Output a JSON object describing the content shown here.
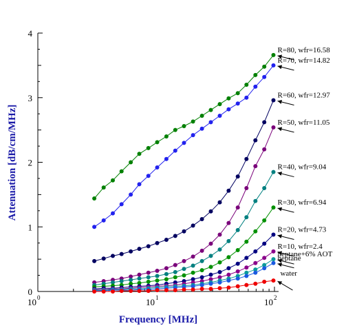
{
  "chart_data": {
    "type": "line",
    "xlabel": "Frequency [MHz]",
    "ylabel": "Attenuation [dB/cm/MHz]",
    "x_scale": "log",
    "xlim": [
      1,
      100
    ],
    "ylim": [
      0,
      4
    ],
    "x_ticks": [
      {
        "value": 1,
        "base": "10",
        "exp": "0"
      },
      {
        "value": 10,
        "base": "10",
        "exp": "1"
      },
      {
        "value": 100,
        "base": "10",
        "exp": "2"
      }
    ],
    "y_ticks": [
      "0",
      "1",
      "2",
      "3",
      "4"
    ],
    "grid": false,
    "x": [
      3,
      3.6,
      4.3,
      5.1,
      6.1,
      7.2,
      8.6,
      10.2,
      12.2,
      14.5,
      17.2,
      20.5,
      24.4,
      29,
      34.5,
      41,
      49,
      58,
      69,
      82,
      98
    ],
    "series": [
      {
        "name": "",
        "color": "#008000",
        "values": [
          1.44,
          1.61,
          1.72,
          1.86,
          2.0,
          2.13,
          2.22,
          2.31,
          2.4,
          2.5,
          2.56,
          2.63,
          2.72,
          2.81,
          2.9,
          2.99,
          3.07,
          3.2,
          3.35,
          3.48,
          3.66
        ]
      },
      {
        "name": "",
        "color": "#2222ee",
        "values": [
          1.0,
          1.1,
          1.21,
          1.35,
          1.5,
          1.66,
          1.79,
          1.92,
          2.05,
          2.18,
          2.3,
          2.42,
          2.52,
          2.62,
          2.72,
          2.82,
          2.91,
          3.0,
          3.17,
          3.32,
          3.5
        ]
      },
      {
        "name": "",
        "color": "#000060",
        "values": [
          0.47,
          0.51,
          0.55,
          0.58,
          0.62,
          0.66,
          0.7,
          0.75,
          0.8,
          0.86,
          0.93,
          1.02,
          1.12,
          1.24,
          1.38,
          1.56,
          1.78,
          2.05,
          2.34,
          2.62,
          2.96
        ]
      },
      {
        "name": "",
        "color": "#7a007a",
        "values": [
          0.14,
          0.16,
          0.18,
          0.2,
          0.23,
          0.26,
          0.29,
          0.32,
          0.36,
          0.41,
          0.47,
          0.54,
          0.63,
          0.74,
          0.88,
          1.06,
          1.3,
          1.6,
          1.94,
          2.2,
          2.54
        ]
      },
      {
        "name": "",
        "color": "#008080",
        "values": [
          0.1,
          0.12,
          0.14,
          0.16,
          0.18,
          0.2,
          0.22,
          0.24,
          0.27,
          0.3,
          0.35,
          0.4,
          0.47,
          0.55,
          0.65,
          0.78,
          0.95,
          1.15,
          1.4,
          1.6,
          1.85
        ]
      },
      {
        "name": "",
        "color": "#009000",
        "values": [
          0.07,
          0.08,
          0.09,
          0.1,
          0.12,
          0.13,
          0.15,
          0.17,
          0.19,
          0.22,
          0.25,
          0.29,
          0.33,
          0.38,
          0.45,
          0.53,
          0.64,
          0.77,
          0.93,
          1.1,
          1.3
        ]
      },
      {
        "name": "",
        "color": "#000080",
        "values": [
          0.04,
          0.05,
          0.05,
          0.06,
          0.07,
          0.08,
          0.09,
          0.1,
          0.12,
          0.14,
          0.16,
          0.19,
          0.22,
          0.26,
          0.3,
          0.36,
          0.43,
          0.52,
          0.62,
          0.74,
          0.88
        ]
      },
      {
        "name": "",
        "color": "#8a008a",
        "values": [
          0.03,
          0.03,
          0.04,
          0.04,
          0.05,
          0.06,
          0.07,
          0.08,
          0.09,
          0.1,
          0.12,
          0.14,
          0.16,
          0.19,
          0.22,
          0.26,
          0.31,
          0.37,
          0.44,
          0.52,
          0.62
        ]
      },
      {
        "name": "",
        "color": "#0a9a9a",
        "values": [
          0.02,
          0.02,
          0.03,
          0.03,
          0.04,
          0.04,
          0.05,
          0.06,
          0.07,
          0.08,
          0.09,
          0.1,
          0.12,
          0.14,
          0.17,
          0.2,
          0.24,
          0.29,
          0.34,
          0.41,
          0.5
        ]
      },
      {
        "name": "",
        "color": "#1a5ae0",
        "values": [
          0.01,
          0.01,
          0.02,
          0.02,
          0.02,
          0.03,
          0.03,
          0.04,
          0.05,
          0.06,
          0.07,
          0.08,
          0.1,
          0.12,
          0.14,
          0.17,
          0.2,
          0.24,
          0.29,
          0.36,
          0.44
        ]
      },
      {
        "name": "",
        "color": "#ee0000",
        "values": [
          0.0,
          0.0,
          0.0,
          0.01,
          0.01,
          0.01,
          0.01,
          0.02,
          0.02,
          0.02,
          0.03,
          0.03,
          0.04,
          0.04,
          0.05,
          0.06,
          0.08,
          0.1,
          0.12,
          0.15,
          0.17
        ]
      }
    ],
    "annotations": [
      {
        "text": "R=80, wfr=16.58",
        "series_index": 0
      },
      {
        "text": "R=70, wfr=14.82",
        "series_index": 1
      },
      {
        "text": "R=60, wfr=12.97",
        "series_index": 2
      },
      {
        "text": "R=50, wfr=11.05",
        "series_index": 3
      },
      {
        "text": "R=40, wfr=9.04",
        "series_index": 4
      },
      {
        "text": "R=30, wfr=6.94",
        "series_index": 5
      },
      {
        "text": "R=20, wfr=4.73",
        "series_index": 6
      },
      {
        "text": "R=10, wfr=2.4",
        "series_index": 7
      },
      {
        "text": "heptane+6% AOT",
        "series_index": 8
      },
      {
        "text": "heptane",
        "series_index": 9
      },
      {
        "text": "water",
        "series_index": 10
      }
    ]
  }
}
